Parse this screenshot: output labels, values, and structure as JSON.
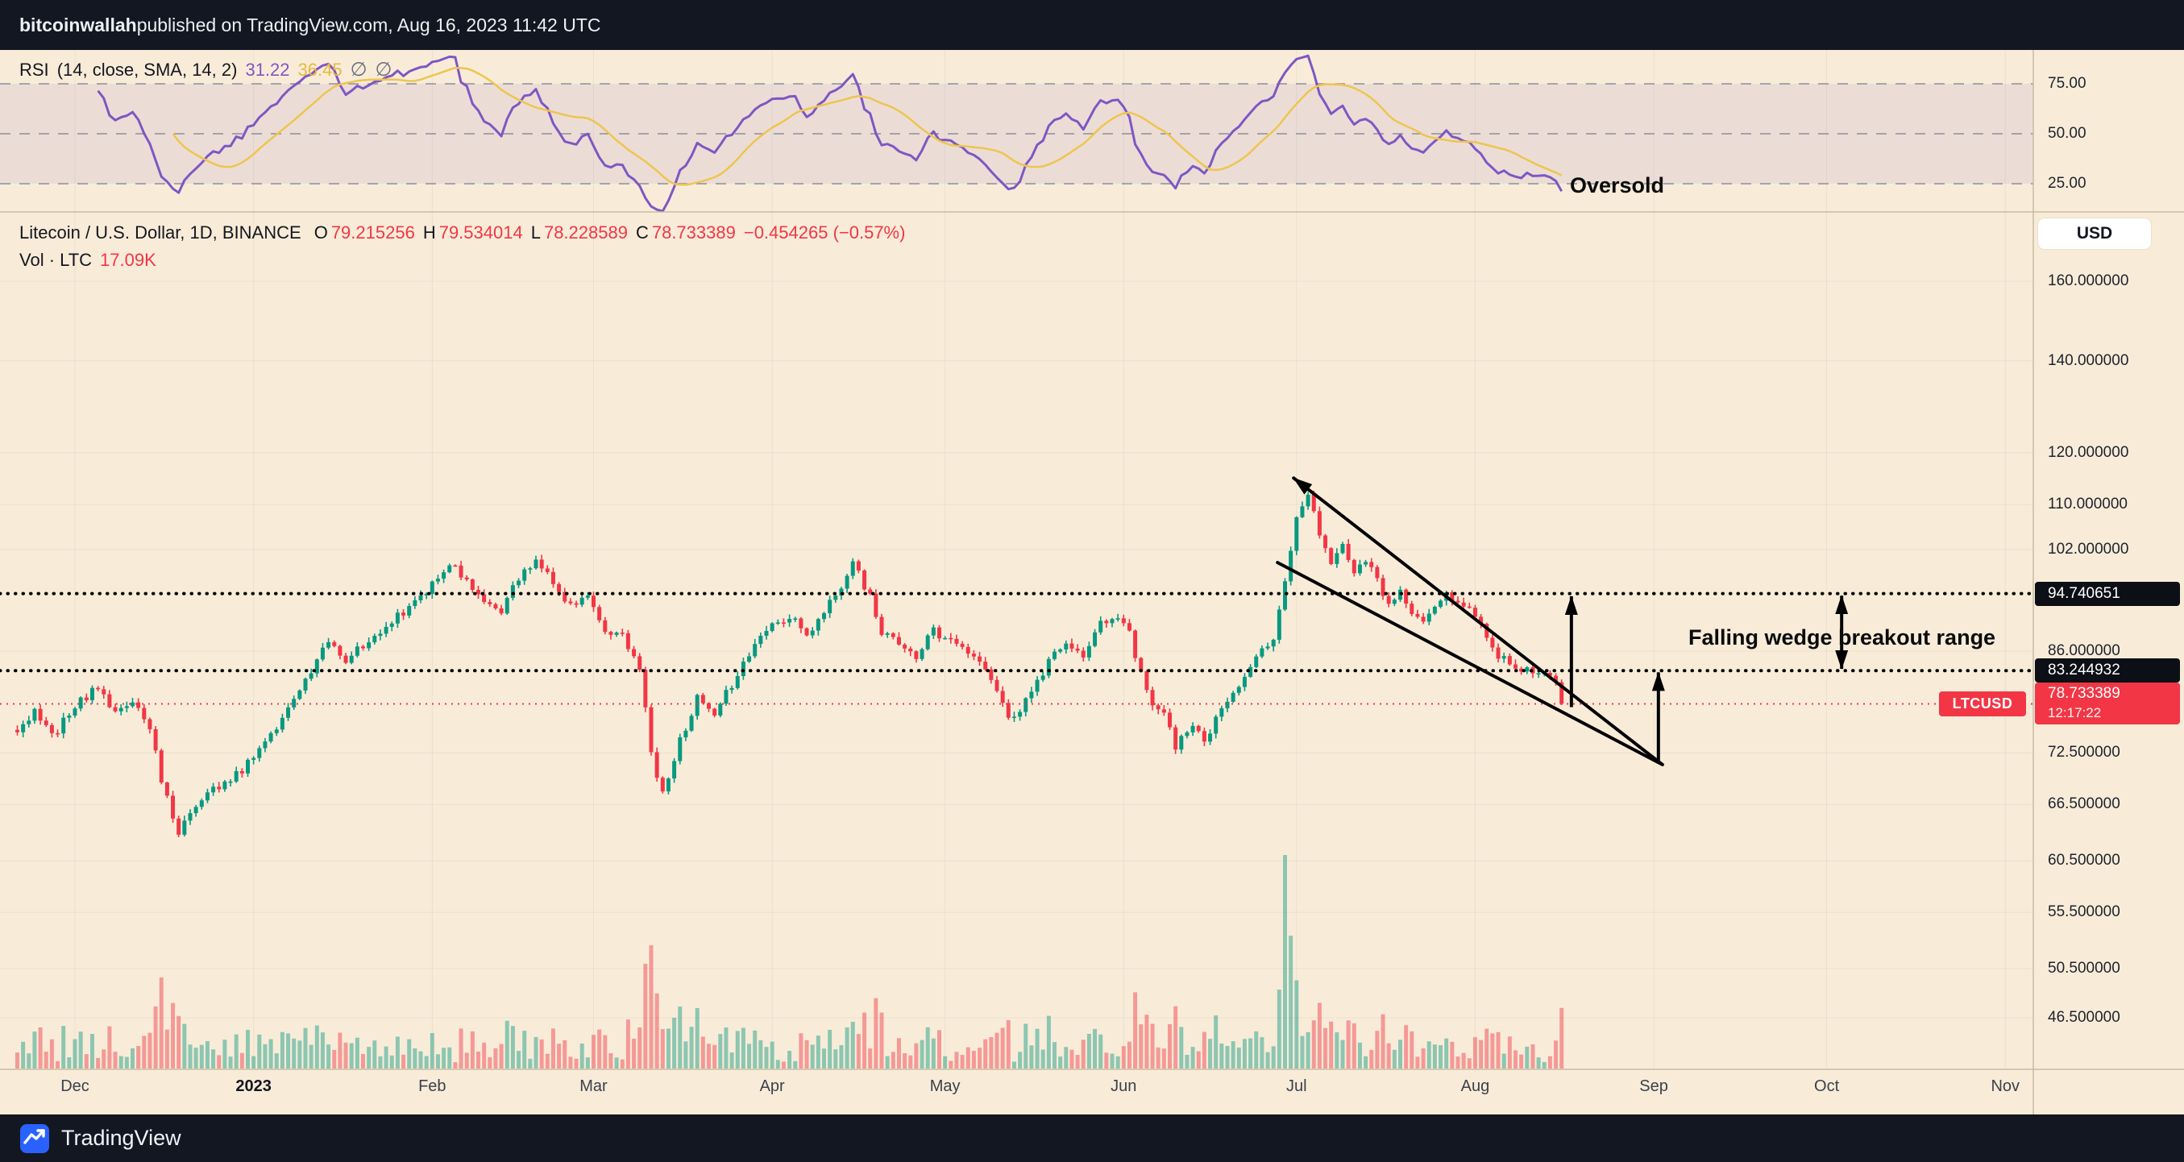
{
  "topbar": {
    "publisher": "bitcoinwallah",
    "rest": " published on TradingView.com, Aug 16, 2023 11:42 UTC"
  },
  "rsi_panel": {
    "title": "RSI",
    "params": "(14, close, SMA, 14, 2)",
    "rsi_value": "31.22",
    "sma_value": "36.45",
    "hide_icon": "∅",
    "oversold_label": "Oversold",
    "axis_labels": [
      {
        "text": "75.00",
        "value": 75
      },
      {
        "text": "50.00",
        "value": 50
      },
      {
        "text": "25.00",
        "value": 25
      }
    ]
  },
  "main_panel": {
    "symbol_title": "Litecoin / U.S. Dollar, 1D, BINANCE",
    "ohlc": {
      "o_label": "O",
      "o": "79.215256",
      "h_label": "H",
      "h": "79.534014",
      "l_label": "L",
      "l": "78.228589",
      "c_label": "C",
      "c": "78.733389",
      "change": "−0.454265 (−0.57%)"
    },
    "volume_label": "Vol · LTC",
    "volume_value": "17.09K",
    "currency_button": "USD",
    "annotation": "Falling wedge breakout range",
    "axis_labels": [
      {
        "text": "160.000000",
        "value": 160,
        "grid": true
      },
      {
        "text": "140.000000",
        "value": 140,
        "grid": true
      },
      {
        "text": "120.000000",
        "value": 120,
        "grid": true
      },
      {
        "text": "110.000000",
        "value": 110,
        "grid": true
      },
      {
        "text": "102.000000",
        "value": 102,
        "grid": true
      },
      {
        "text": "86.000000",
        "value": 86,
        "grid": true
      },
      {
        "text": "72.500000",
        "value": 72.5,
        "grid": true
      },
      {
        "text": "66.500000",
        "value": 66.5,
        "grid": true
      },
      {
        "text": "60.500000",
        "value": 60.5,
        "grid": true
      },
      {
        "text": "55.500000",
        "value": 55.5,
        "grid": true
      },
      {
        "text": "50.500000",
        "value": 50.5,
        "grid": true
      },
      {
        "text": "46.500000",
        "value": 46.5,
        "grid": true
      }
    ],
    "level_badges": [
      {
        "text": "94.740651",
        "value": 94.740651
      },
      {
        "text": "83.244932",
        "value": 83.244932
      }
    ],
    "price_badge": {
      "symbol": "LTCUSD",
      "price": "78.733389",
      "countdown": "12:17:22",
      "value": 78.733389
    }
  },
  "time_axis": {
    "labels": [
      {
        "text": "Dec",
        "day": 10
      },
      {
        "text": "2023",
        "day": 41,
        "bold": true
      },
      {
        "text": "Feb",
        "day": 72
      },
      {
        "text": "Mar",
        "day": 100
      },
      {
        "text": "Apr",
        "day": 131
      },
      {
        "text": "May",
        "day": 161
      },
      {
        "text": "Jun",
        "day": 192
      },
      {
        "text": "Jul",
        "day": 222
      },
      {
        "text": "Aug",
        "day": 253
      },
      {
        "text": "Sep",
        "day": 284
      },
      {
        "text": "Oct",
        "day": 314
      },
      {
        "text": "Nov",
        "day": 345
      }
    ]
  },
  "footer": {
    "brand": "TradingView"
  },
  "colors": {
    "up": "#089981",
    "down": "#f23645",
    "rsi": "#7e57c2",
    "rsi_sma": "#eec54f",
    "badge_dark": "#0d0f16",
    "panel_bg": "#f8ecd9",
    "frame_bg": "#131722"
  },
  "chart_data": {
    "type": "candlestick",
    "symbol": "LTCUSD",
    "exchange": "BINANCE",
    "interval": "1D",
    "scale": "log",
    "x_unit": "days since 2022-11-21",
    "price_anchors": [
      [
        0,
        75.5
      ],
      [
        3,
        77.5
      ],
      [
        6,
        74.5
      ],
      [
        10,
        78.5
      ],
      [
        14,
        81
      ],
      [
        17,
        77.5
      ],
      [
        20,
        78.5
      ],
      [
        23,
        76
      ],
      [
        25,
        69
      ],
      [
        28,
        63.5
      ],
      [
        31,
        66.5
      ],
      [
        35,
        68.5
      ],
      [
        39,
        70.5
      ],
      [
        43,
        74
      ],
      [
        47,
        78
      ],
      [
        50,
        81.5
      ],
      [
        54,
        87.5
      ],
      [
        57,
        84.5
      ],
      [
        61,
        88
      ],
      [
        65,
        90.5
      ],
      [
        69,
        93.5
      ],
      [
        73,
        97
      ],
      [
        75,
        100
      ],
      [
        78,
        96.5
      ],
      [
        81,
        93.5
      ],
      [
        84,
        92
      ],
      [
        87,
        97
      ],
      [
        90,
        100
      ],
      [
        93,
        97
      ],
      [
        96,
        92.5
      ],
      [
        99,
        94.5
      ],
      [
        102,
        89.5
      ],
      [
        105,
        88
      ],
      [
        108,
        83.5
      ],
      [
        110,
        72.5
      ],
      [
        112,
        67.5
      ],
      [
        115,
        74
      ],
      [
        118,
        79.5
      ],
      [
        121,
        77
      ],
      [
        125,
        83
      ],
      [
        128,
        87
      ],
      [
        131,
        89.5
      ],
      [
        134,
        91.5
      ],
      [
        137,
        88.5
      ],
      [
        140,
        92
      ],
      [
        143,
        95.5
      ],
      [
        145,
        100.5
      ],
      [
        148,
        94
      ],
      [
        150,
        88.5
      ],
      [
        153,
        87.5
      ],
      [
        156,
        85.5
      ],
      [
        159,
        89
      ],
      [
        162,
        87.5
      ],
      [
        165,
        86
      ],
      [
        168,
        84
      ],
      [
        171,
        78.5
      ],
      [
        173,
        76.5
      ],
      [
        176,
        80.5
      ],
      [
        179,
        84.5
      ],
      [
        182,
        87
      ],
      [
        185,
        85.5
      ],
      [
        188,
        90.5
      ],
      [
        191,
        91.5
      ],
      [
        193,
        88.5
      ],
      [
        196,
        80
      ],
      [
        199,
        77.5
      ],
      [
        201,
        73.5
      ],
      [
        204,
        76
      ],
      [
        206,
        74
      ],
      [
        209,
        78
      ],
      [
        212,
        81
      ],
      [
        215,
        85
      ],
      [
        218,
        88
      ],
      [
        220,
        96.5
      ],
      [
        222,
        107
      ],
      [
        224,
        112
      ],
      [
        226,
        104.5
      ],
      [
        228,
        99.5
      ],
      [
        230,
        103
      ],
      [
        232,
        97.5
      ],
      [
        234,
        100.5
      ],
      [
        236,
        96.5
      ],
      [
        238,
        93.5
      ],
      [
        240,
        95.5
      ],
      [
        242,
        92
      ],
      [
        244,
        90.5
      ],
      [
        246,
        92.5
      ],
      [
        248,
        94.5
      ],
      [
        251,
        93
      ],
      [
        253,
        91.5
      ],
      [
        255,
        88.5
      ],
      [
        257,
        85.5
      ],
      [
        259,
        84
      ],
      [
        261,
        83.2
      ],
      [
        263,
        83.5
      ],
      [
        265,
        82.8
      ],
      [
        267,
        81
      ],
      [
        268,
        78.733389
      ]
    ],
    "last_close": 78.733389,
    "levels": [
      94.740651,
      83.244932
    ],
    "indicator_rsi": {
      "length": 14,
      "source": "close",
      "smoothing_sma": 14,
      "last_rsi": 31.22,
      "last_sma": 36.45,
      "overbought": 75,
      "midline": 50,
      "oversold": 25
    },
    "volume": {
      "last_label": "17.09K",
      "spike_day": 220
    },
    "wedge": {
      "upper": [
        [
          221.5,
          115
        ],
        [
          285.5,
          71.1
        ]
      ],
      "lower": [
        [
          218.7,
          99.8
        ],
        [
          285.5,
          71.1
        ]
      ]
    },
    "arrows": [
      {
        "day": 269.7,
        "from_price": 78.3,
        "to_price": 94.3,
        "heads": "end"
      },
      {
        "day": 284.8,
        "from_price": 71.4,
        "to_price": 83.0,
        "heads": "end"
      },
      {
        "day": 316.6,
        "from_price": 83.5,
        "to_price": 94.4,
        "heads": "both"
      }
    ]
  }
}
